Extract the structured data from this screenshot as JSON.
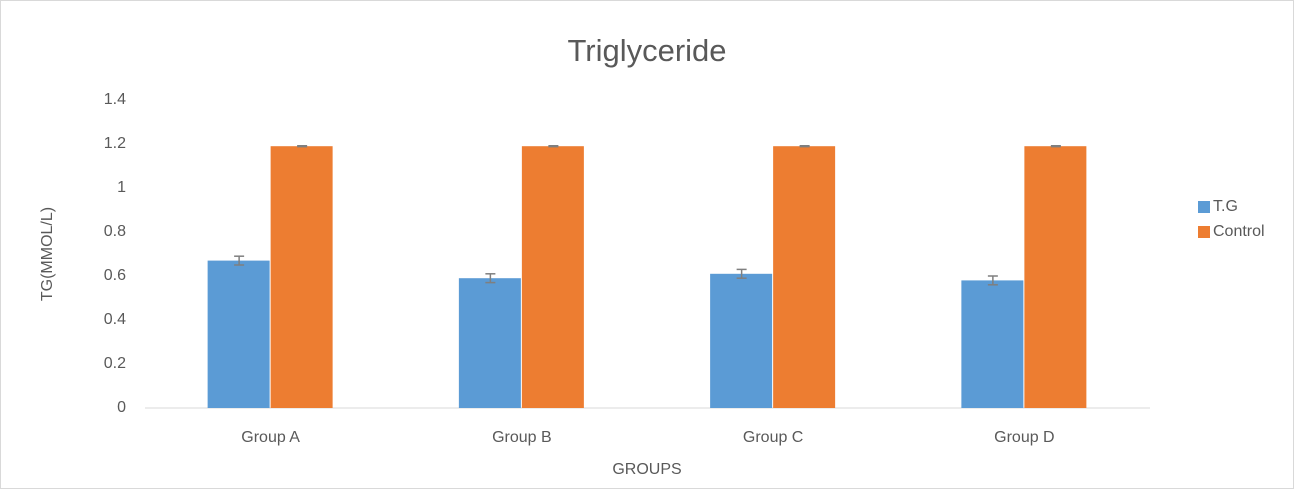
{
  "chart_data": {
    "type": "bar",
    "title": "Triglyceride",
    "x_label": "GROUPS",
    "y_label": "TG(MMOL/L)",
    "categories": [
      "Group A",
      "Group B",
      "Group C",
      "Group D"
    ],
    "series": [
      {
        "name": "T.G",
        "color": "#5b9bd5",
        "values": [
          0.67,
          0.59,
          0.61,
          0.58
        ],
        "errors": [
          0.02,
          0.02,
          0.02,
          0.02
        ]
      },
      {
        "name": "Control",
        "color": "#ed7d31",
        "values": [
          1.19,
          1.19,
          1.19,
          1.19
        ],
        "errors": [
          0.002,
          0.002,
          0.002,
          0.002
        ]
      }
    ],
    "ylim": [
      0,
      1.4
    ],
    "yticks": [
      0,
      0.2,
      0.4,
      0.6,
      0.8,
      1,
      1.2,
      1.4
    ],
    "grid": false,
    "legend": "right"
  }
}
